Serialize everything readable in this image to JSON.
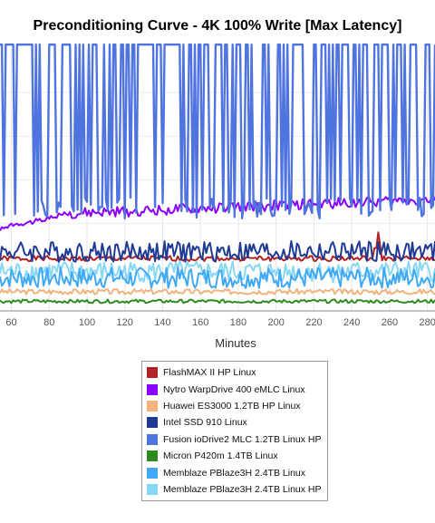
{
  "chart_data": {
    "type": "line",
    "title": "Preconditioning Curve - 4K 100% Write [Max Latency]",
    "xlabel": "Minutes",
    "ylabel": "",
    "xlim": [
      54,
      284
    ],
    "ylim": [
      0,
      300
    ],
    "x_ticks": [
      60,
      80,
      100,
      120,
      140,
      160,
      180,
      200,
      220,
      240,
      260,
      280
    ],
    "grid": true,
    "legend_position": "bottom",
    "series": [
      {
        "name": "FlashMAX II HP Linux",
        "color": "#b22222",
        "base": 60,
        "amp": 3,
        "seed": 1,
        "spikes": [
          [
            252,
            72
          ],
          [
            253,
            72
          ],
          [
            254,
            90
          ],
          [
            255,
            75
          ]
        ]
      },
      {
        "name": "Nytro WarpDrive 400 eMLC Linux",
        "color": "#8b00ff",
        "base": 108,
        "amp": 6,
        "seed": 2,
        "start": 92,
        "trend": 20
      },
      {
        "name": "Huawei ES3000 1.2TB HP Linux",
        "color": "#f2b27e",
        "base": 22,
        "amp": 3,
        "seed": 3
      },
      {
        "name": "Intel SSD 910 Linux",
        "color": "#1f3a93",
        "base": 68,
        "amp": 12,
        "seed": 4
      },
      {
        "name": "Fusion ioDrive2 MLC 1.2TB Linux HP",
        "color": "#4f74e0",
        "base": 118,
        "amp": 12,
        "seed": 5,
        "spike_top": 300
      },
      {
        "name": "Micron P420m 1.4TB Linux",
        "color": "#2e8b20",
        "base": 11,
        "amp": 2,
        "seed": 6
      },
      {
        "name": "Memblaze PBlaze3H 2.4TB Linux",
        "color": "#3fa9f5",
        "base": 38,
        "amp": 12,
        "seed": 7
      },
      {
        "name": "Memblaze PBlaze3H 2.4TB Linux HP",
        "color": "#87d8f7",
        "base": 45,
        "amp": 12,
        "seed": 8
      }
    ]
  }
}
